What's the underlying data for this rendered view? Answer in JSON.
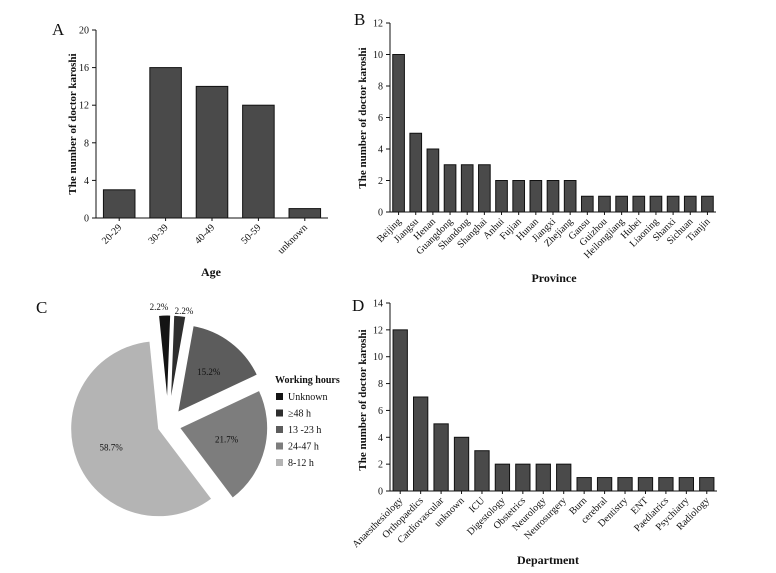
{
  "chart_data": [
    {
      "panel": "A",
      "type": "bar",
      "categories": [
        "20-29",
        "30-39",
        "40-49",
        "50-59",
        "unknown"
      ],
      "values": [
        3,
        16,
        14,
        12,
        1
      ],
      "xlabel": "Age",
      "ylabel": "The number of doctor karoshi",
      "ylim": [
        0,
        20
      ],
      "yticks": [
        0,
        4,
        8,
        12,
        16,
        20
      ],
      "bar_color": "#4a4a4a"
    },
    {
      "panel": "B",
      "type": "bar",
      "categories": [
        "Beijing",
        "Jiangsu",
        "Henan",
        "Guangdong",
        "Shandong",
        "Shanghai",
        "Anhui",
        "Fujian",
        "Hunan",
        "Jiangxi",
        "Zhejiang",
        "Gansu",
        "Guizhou",
        "Heilongjiang",
        "Hubei",
        "Liaoning",
        "Shanxi",
        "Sichuan",
        "Tianjin"
      ],
      "values": [
        10,
        5,
        4,
        3,
        3,
        3,
        2,
        2,
        2,
        2,
        2,
        1,
        1,
        1,
        1,
        1,
        1,
        1,
        1
      ],
      "xlabel": "Province",
      "ylabel": "The number of doctor karoshi",
      "ylim": [
        0,
        12
      ],
      "yticks": [
        0,
        2,
        4,
        6,
        8,
        10,
        12
      ],
      "bar_color": "#4a4a4a"
    },
    {
      "panel": "C",
      "type": "pie",
      "legend_title": "Working hours",
      "slices": [
        {
          "label": "Unknown",
          "value": 2.2,
          "text": "2.2%",
          "color": "#141414"
        },
        {
          "label": "≥48 h",
          "value": 2.2,
          "text": "2.2%",
          "color": "#2e2e2e"
        },
        {
          "label": "13 -23 h",
          "value": 15.2,
          "text": "15.2%",
          "color": "#5c5c5c"
        },
        {
          "label": "24-47 h",
          "value": 21.7,
          "text": "21.7%",
          "color": "#7d7d7d"
        },
        {
          "label": "8-12 h",
          "value": 58.7,
          "text": "58.7%",
          "color": "#b4b4b4"
        }
      ]
    },
    {
      "panel": "D",
      "type": "bar",
      "categories": [
        "Anaesthesiology",
        "Orthopaedics",
        "Cardiovascular",
        "unknown",
        "ICU",
        "Digestology",
        "Obstetrics",
        "Neurology",
        "Neurosurgery",
        "Burn",
        "cerebral",
        "Dentistry",
        "ENT",
        "Paediatrics",
        "Psychiatry",
        "Radiology"
      ],
      "values": [
        12,
        7,
        5,
        4,
        3,
        2,
        2,
        2,
        2,
        1,
        1,
        1,
        1,
        1,
        1,
        1
      ],
      "xlabel": "Department",
      "ylabel": "The number of doctor karoshi",
      "ylim": [
        0,
        14
      ],
      "yticks": [
        0,
        2,
        4,
        6,
        8,
        10,
        12,
        14
      ],
      "bar_color": "#4a4a4a"
    }
  ]
}
